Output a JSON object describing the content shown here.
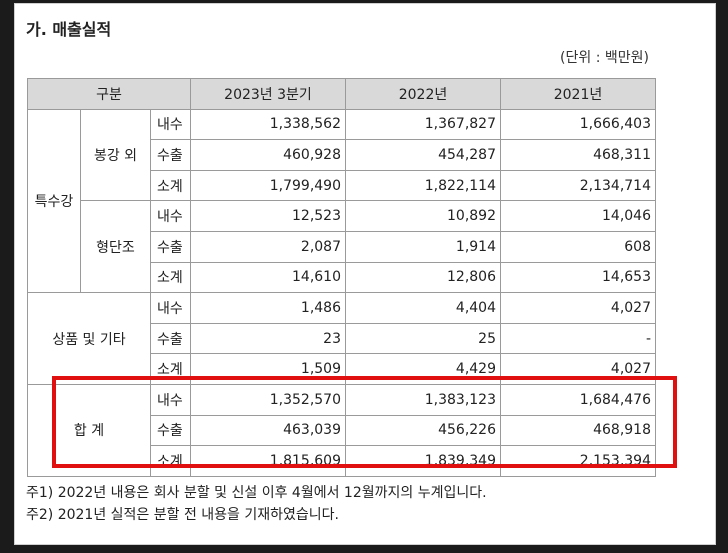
{
  "title": "가. 매출실적",
  "unit": "(단위 : 백만원)",
  "table": {
    "header": {
      "category": "구분",
      "col1": "2023년 3분기",
      "col2": "2022년",
      "col3": "2021년"
    },
    "groups": [
      {
        "name": "특수강",
        "subgroups": [
          {
            "name": "봉강 외",
            "rows": [
              {
                "label": "내수",
                "values": [
                  "1,338,562",
                  "1,367,827",
                  "1,666,403"
                ]
              },
              {
                "label": "수출",
                "values": [
                  "460,928",
                  "454,287",
                  "468,311"
                ]
              },
              {
                "label": "소계",
                "values": [
                  "1,799,490",
                  "1,822,114",
                  "2,134,714"
                ]
              }
            ]
          },
          {
            "name": "형단조",
            "rows": [
              {
                "label": "내수",
                "values": [
                  "12,523",
                  "10,892",
                  "14,046"
                ]
              },
              {
                "label": "수출",
                "values": [
                  "2,087",
                  "1,914",
                  "608"
                ]
              },
              {
                "label": "소계",
                "values": [
                  "14,610",
                  "12,806",
                  "14,653"
                ]
              }
            ]
          }
        ]
      },
      {
        "name": "상품 및 기타",
        "rows": [
          {
            "label": "내수",
            "values": [
              "1,486",
              "4,404",
              "4,027"
            ]
          },
          {
            "label": "수출",
            "values": [
              "23",
              "25",
              "-"
            ]
          },
          {
            "label": "소계",
            "values": [
              "1,509",
              "4,429",
              "4,027"
            ]
          }
        ]
      },
      {
        "name": "합 계",
        "rows": [
          {
            "label": "내수",
            "values": [
              "1,352,570",
              "1,383,123",
              "1,684,476"
            ]
          },
          {
            "label": "수출",
            "values": [
              "463,039",
              "456,226",
              "468,918"
            ]
          },
          {
            "label": "소계",
            "values": [
              "1,815,609",
              "1,839,349",
              "2,153,394"
            ]
          }
        ]
      }
    ]
  },
  "notes": [
    "주1) 2022년 내용은 회사 분할 및 신설 이후 4월에서 12월까지의 누계입니다.",
    "주2) 2021년 실적은 분할 전 내용을 기재하였습니다."
  ],
  "highlight_color": "#e11010"
}
